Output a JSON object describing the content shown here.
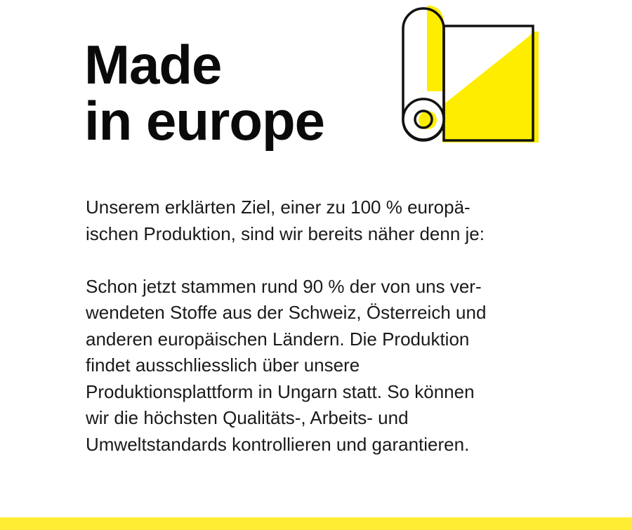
{
  "title": {
    "line1": "Made",
    "line2": "in europe"
  },
  "icon": {
    "name": "fabric-roll-icon",
    "accent": "#ffed00",
    "stroke": "#111111"
  },
  "paragraphs": [
    [
      "Unserem erklärten Ziel, einer zu 100 % europä-",
      "ischen Produktion, sind wir bereits näher denn je:"
    ],
    [
      "Schon jetzt stammen rund 90 % der von uns ver-",
      "wendeten Stoffe aus der Schweiz, Österreich und",
      "anderen europäischen Ländern. Die Produktion",
      "findet ausschliesslich über unsere",
      "Produktionsplattform in Ungarn statt. So können",
      "wir die höchsten Qualitäts-, Arbeits- und",
      "Umweltstandards kontrollieren und garantieren."
    ]
  ],
  "footer_bar_color": "#ffed33"
}
